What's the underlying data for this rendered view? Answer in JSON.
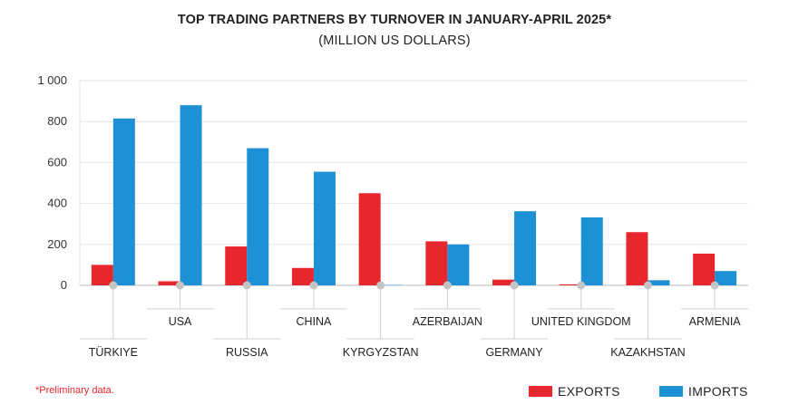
{
  "title": "TOP TRADING PARTNERS BY TURNOVER IN JANUARY-APRIL 2025*",
  "subtitle": "(MILLION US DOLLARS)",
  "footnote": "*Preliminary data.",
  "colors": {
    "exports": "#e8262d",
    "imports": "#1e90d6",
    "grid": "#e6e6e6",
    "axis": "#bdbdbd"
  },
  "chart_data": {
    "type": "bar",
    "categories": [
      "TÜRKIYE",
      "USA",
      "RUSSIA",
      "CHINA",
      "KYRGYZSTAN",
      "AZERBAIJAN",
      "GERMANY",
      "UNITED KINGDOM",
      "KAZAKHSTAN",
      "ARMENIA"
    ],
    "series": [
      {
        "name": "EXPORTS",
        "values": [
          100,
          20,
          190,
          85,
          450,
          215,
          28,
          5,
          260,
          155
        ]
      },
      {
        "name": "IMPORTS",
        "values": [
          815,
          880,
          670,
          555,
          2,
          200,
          362,
          332,
          25,
          70
        ]
      }
    ],
    "ylim": [
      0,
      1000
    ],
    "yticks": [
      0,
      200,
      400,
      600,
      800,
      1000
    ],
    "ytick_labels": [
      "0",
      "200",
      "400",
      "600",
      "800",
      "1 000"
    ],
    "grid": true,
    "legend_position": "bottom-right"
  }
}
